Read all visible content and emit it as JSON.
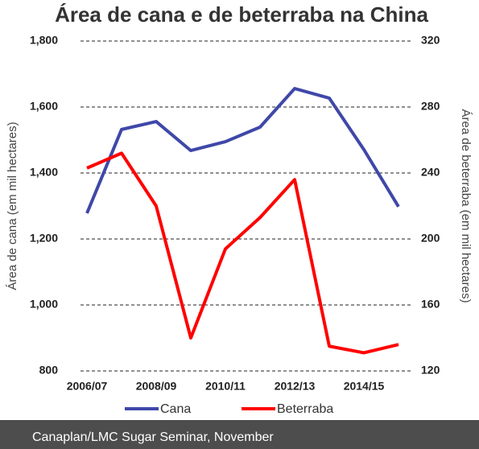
{
  "chart_data": {
    "type": "line",
    "title": "Área de cana e de beterraba na China",
    "categories": [
      "2006/07",
      null,
      "2008/09",
      null,
      "2010/11",
      null,
      "2012/13",
      null,
      "2014/15",
      null
    ],
    "series": [
      {
        "name": "Cana",
        "color": "#3f48a8",
        "values": [
          1278,
          1532,
          1556,
          1468,
          1495,
          1539,
          1656,
          1627,
          1471,
          1298
        ]
      },
      {
        "name": "Beterraba",
        "color": "#ff0000",
        "axis": "y2",
        "values": [
          243,
          252,
          220,
          140,
          194,
          213,
          236,
          135,
          131,
          136
        ]
      }
    ],
    "y_label": "Área de cana (em mil hectares)",
    "y2_label": "Área de beterraba (em mil hectares)",
    "ylim": [
      800,
      1800
    ],
    "yticks": [
      {
        "value": 800,
        "label": "800"
      },
      {
        "value": 1000,
        "label": "1,000"
      },
      {
        "value": 1200,
        "label": "1,200"
      },
      {
        "value": 1400,
        "label": "1,400"
      },
      {
        "value": 1600,
        "label": "1,600"
      },
      {
        "value": 1800,
        "label": "1,800"
      }
    ],
    "y2lim": [
      120,
      320
    ],
    "y2ticks": [
      120,
      160,
      200,
      240,
      280,
      320
    ],
    "grid": true,
    "legend": "bottom",
    "footer": "Canaplan/LMC Sugar Seminar, November"
  }
}
